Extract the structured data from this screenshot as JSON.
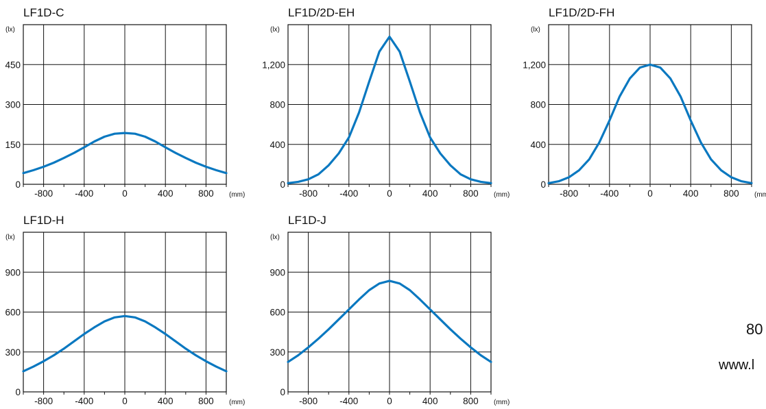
{
  "colors": {
    "curve": "#0a78c0",
    "grid": "#111111"
  },
  "side": {
    "number": "80",
    "url": "www.l"
  },
  "chart_data": [
    {
      "type": "line",
      "title": "LF1D-C",
      "ylabel": "(lx)",
      "xlabel": "(mm)",
      "xlim": [
        -1000,
        1000
      ],
      "ylim": [
        0,
        600
      ],
      "yticks": [
        0,
        150,
        300,
        450
      ],
      "ytick_labels": [
        "0",
        "150",
        "300",
        "450"
      ],
      "xticks": [
        -800,
        -400,
        0,
        400,
        800
      ],
      "xtick_labels": [
        "-800",
        "-400",
        "0",
        "400",
        "800"
      ],
      "grid": true,
      "series": [
        {
          "x": [
            -1000,
            -900,
            -800,
            -700,
            -600,
            -500,
            -400,
            -300,
            -200,
            -100,
            0,
            100,
            200,
            300,
            400,
            500,
            600,
            700,
            800,
            900,
            1000
          ],
          "y": [
            42,
            53,
            66,
            81,
            99,
            118,
            139,
            161,
            179,
            190,
            193,
            190,
            179,
            161,
            139,
            118,
            99,
            81,
            66,
            53,
            42
          ]
        }
      ]
    },
    {
      "type": "line",
      "title": "LF1D/2D-EH",
      "ylabel": "(lx)",
      "xlabel": "(mm)",
      "xlim": [
        -1000,
        1000
      ],
      "ylim": [
        0,
        1600
      ],
      "yticks": [
        0,
        400,
        800,
        1200
      ],
      "ytick_labels": [
        "0",
        "400",
        "800",
        "1,200"
      ],
      "xticks": [
        -800,
        -400,
        0,
        400,
        800
      ],
      "xtick_labels": [
        "-800",
        "-400",
        "0",
        "400",
        "800"
      ],
      "grid": true,
      "series": [
        {
          "x": [
            -1000,
            -900,
            -800,
            -700,
            -600,
            -500,
            -400,
            -300,
            -200,
            -100,
            0,
            100,
            200,
            300,
            400,
            500,
            600,
            700,
            800,
            900,
            1000
          ],
          "y": [
            12,
            25,
            50,
            100,
            190,
            310,
            470,
            720,
            1030,
            1330,
            1480,
            1330,
            1030,
            720,
            470,
            310,
            190,
            100,
            50,
            25,
            12
          ]
        }
      ]
    },
    {
      "type": "line",
      "title": "LF1D/2D-FH",
      "ylabel": "(lx)",
      "xlabel": "(mm)",
      "xlim": [
        -1000,
        1000
      ],
      "ylim": [
        0,
        1600
      ],
      "yticks": [
        0,
        400,
        800,
        1200
      ],
      "ytick_labels": [
        "0",
        "400",
        "800",
        "1,200"
      ],
      "xticks": [
        -800,
        -400,
        0,
        400,
        800
      ],
      "xtick_labels": [
        "-800",
        "-400",
        "0",
        "400",
        "800"
      ],
      "grid": true,
      "series": [
        {
          "x": [
            -1000,
            -900,
            -800,
            -700,
            -600,
            -500,
            -400,
            -300,
            -200,
            -100,
            0,
            100,
            200,
            300,
            400,
            500,
            600,
            700,
            800,
            900,
            1000
          ],
          "y": [
            12,
            30,
            70,
            140,
            250,
            420,
            640,
            880,
            1060,
            1170,
            1200,
            1170,
            1060,
            880,
            640,
            420,
            250,
            140,
            70,
            30,
            12
          ]
        }
      ]
    },
    {
      "type": "line",
      "title": "LF1D-H",
      "ylabel": "(lx)",
      "xlabel": "(mm)",
      "xlim": [
        -1000,
        1000
      ],
      "ylim": [
        0,
        1200
      ],
      "yticks": [
        0,
        300,
        600,
        900
      ],
      "ytick_labels": [
        "0",
        "300",
        "600",
        "900"
      ],
      "xticks": [
        -800,
        -400,
        0,
        400,
        800
      ],
      "xtick_labels": [
        "-800",
        "-400",
        "0",
        "400",
        "800"
      ],
      "grid": true,
      "series": [
        {
          "x": [
            -1000,
            -900,
            -800,
            -700,
            -600,
            -500,
            -400,
            -300,
            -200,
            -100,
            0,
            100,
            200,
            300,
            400,
            500,
            600,
            700,
            800,
            900,
            1000
          ],
          "y": [
            155,
            190,
            230,
            275,
            325,
            380,
            435,
            485,
            530,
            560,
            570,
            560,
            530,
            485,
            435,
            380,
            325,
            275,
            230,
            190,
            155
          ]
        }
      ]
    },
    {
      "type": "line",
      "title": "LF1D-J",
      "ylabel": "(lx)",
      "xlabel": "(mm)",
      "xlim": [
        -1000,
        1000
      ],
      "ylim": [
        0,
        1200
      ],
      "yticks": [
        0,
        300,
        600,
        900
      ],
      "ytick_labels": [
        "0",
        "300",
        "600",
        "900"
      ],
      "xticks": [
        -800,
        -400,
        0,
        400,
        800
      ],
      "xtick_labels": [
        "-800",
        "-400",
        "0",
        "400",
        "800"
      ],
      "grid": true,
      "series": [
        {
          "x": [
            -1000,
            -900,
            -800,
            -700,
            -600,
            -500,
            -400,
            -300,
            -200,
            -100,
            0,
            100,
            200,
            300,
            400,
            500,
            600,
            700,
            800,
            900,
            1000
          ],
          "y": [
            225,
            275,
            335,
            400,
            470,
            545,
            620,
            695,
            765,
            815,
            835,
            815,
            765,
            695,
            620,
            545,
            470,
            400,
            335,
            275,
            225
          ]
        }
      ]
    }
  ]
}
